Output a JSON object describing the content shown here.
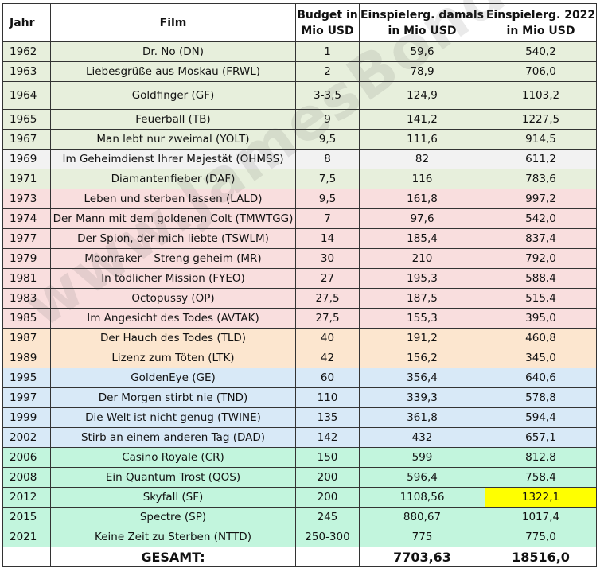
{
  "headers": {
    "jahr": "Jahr",
    "film": "Film",
    "budget_line1": "Budget in",
    "budget_line2": "Mio USD",
    "damals_line1": "Einspielerg. damals",
    "damals_line2": "in Mio USD",
    "heute_line1": "Einspielerg. 2022",
    "heute_line2": "in Mio USD"
  },
  "rows": [
    {
      "jahr": "1962",
      "film": "Dr. No (DN)",
      "budget": "1",
      "damals": "59,6",
      "heute": "540,2",
      "era": "connery"
    },
    {
      "jahr": "1963",
      "film": "Liebesgrüße aus Moskau (FRWL)",
      "budget": "2",
      "damals": "78,9",
      "heute": "706,0",
      "era": "connery"
    },
    {
      "jahr": "1964",
      "film": "Goldfinger (GF)",
      "budget": "3-3,5",
      "damals": "124,9",
      "heute": "1103,2",
      "era": "connery"
    },
    {
      "jahr": "1965",
      "film": "Feuerball (TB)",
      "budget": "9",
      "damals": "141,2",
      "heute": "1227,5",
      "era": "connery"
    },
    {
      "jahr": "1967",
      "film": "Man lebt nur zweimal (YOLT)",
      "budget": "9,5",
      "damals": "111,6",
      "heute": "914,5",
      "era": "connery"
    },
    {
      "jahr": "1969",
      "film": "Im Geheimdienst Ihrer Majestät (OHMSS)",
      "budget": "8",
      "damals": "82",
      "heute": "611,2",
      "era": "lazenby"
    },
    {
      "jahr": "1971",
      "film": "Diamantenfieber (DAF)",
      "budget": "7,5",
      "damals": "116",
      "heute": "783,6",
      "era": "connery"
    },
    {
      "jahr": "1973",
      "film": "Leben und sterben lassen (LALD)",
      "budget": "9,5",
      "damals": "161,8",
      "heute": "997,2",
      "era": "moore"
    },
    {
      "jahr": "1974",
      "film": "Der Mann mit dem goldenen Colt (TMWTGG)",
      "budget": "7",
      "damals": "97,6",
      "heute": "542,0",
      "era": "moore"
    },
    {
      "jahr": "1977",
      "film": "Der Spion, der mich liebte (TSWLM)",
      "budget": "14",
      "damals": "185,4",
      "heute": "837,4",
      "era": "moore"
    },
    {
      "jahr": "1979",
      "film": "Moonraker – Streng geheim (MR)",
      "budget": "30",
      "damals": "210",
      "heute": "792,0",
      "era": "moore"
    },
    {
      "jahr": "1981",
      "film": "In tödlicher Mission (FYEO)",
      "budget": "27",
      "damals": "195,3",
      "heute": "588,4",
      "era": "moore"
    },
    {
      "jahr": "1983",
      "film": "Octopussy (OP)",
      "budget": "27,5",
      "damals": "187,5",
      "heute": "515,4",
      "era": "moore"
    },
    {
      "jahr": "1985",
      "film": "Im Angesicht des Todes (AVTAK)",
      "budget": "27,5",
      "damals": "155,3",
      "heute": "395,0",
      "era": "moore"
    },
    {
      "jahr": "1987",
      "film": "Der Hauch des Todes (TLD)",
      "budget": "40",
      "damals": "191,2",
      "heute": "460,8",
      "era": "dalton"
    },
    {
      "jahr": "1989",
      "film": "Lizenz zum Töten (LTK)",
      "budget": "42",
      "damals": "156,2",
      "heute": "345,0",
      "era": "dalton"
    },
    {
      "jahr": "1995",
      "film": "GoldenEye (GE)",
      "budget": "60",
      "damals": "356,4",
      "heute": "640,6",
      "era": "brosnan"
    },
    {
      "jahr": "1997",
      "film": "Der Morgen stirbt nie (TND)",
      "budget": "110",
      "damals": "339,3",
      "heute": "578,8",
      "era": "brosnan"
    },
    {
      "jahr": "1999",
      "film": "Die Welt ist nicht genug (TWINE)",
      "budget": "135",
      "damals": "361,8",
      "heute": "594,4",
      "era": "brosnan"
    },
    {
      "jahr": "2002",
      "film": "Stirb an einem anderen Tag (DAD)",
      "budget": "142",
      "damals": "432",
      "heute": "657,1",
      "era": "brosnan"
    },
    {
      "jahr": "2006",
      "film": "Casino Royale (CR)",
      "budget": "150",
      "damals": "599",
      "heute": "812,8",
      "era": "craig"
    },
    {
      "jahr": "2008",
      "film": "Ein Quantum Trost (QOS)",
      "budget": "200",
      "damals": "596,4",
      "heute": "758,4",
      "era": "craig"
    },
    {
      "jahr": "2012",
      "film": "Skyfall (SF)",
      "budget": "200",
      "damals": "1108,56",
      "heute": "1322,1",
      "era": "craig",
      "highlight_heute": true
    },
    {
      "jahr": "2015",
      "film": "Spectre (SP)",
      "budget": "245",
      "damals": "880,67",
      "heute": "1017,4",
      "era": "craig"
    },
    {
      "jahr": "2021",
      "film": "Keine Zeit zu Sterben (NTTD)",
      "budget": "250-300",
      "damals": "775",
      "heute": "775,0",
      "era": "craig"
    }
  ],
  "total": {
    "label": "GESAMT:",
    "damals": "7703,63",
    "heute": "18516,0"
  },
  "watermark": "www.JamesBond.de",
  "colors": {
    "connery": "#e7efdc",
    "lazenby": "#f2f2f2",
    "moore": "#f9dede",
    "dalton": "#fce6cf",
    "brosnan": "#d8e9f7",
    "craig": "#c2f5dd",
    "highlight": "#ffff00"
  }
}
